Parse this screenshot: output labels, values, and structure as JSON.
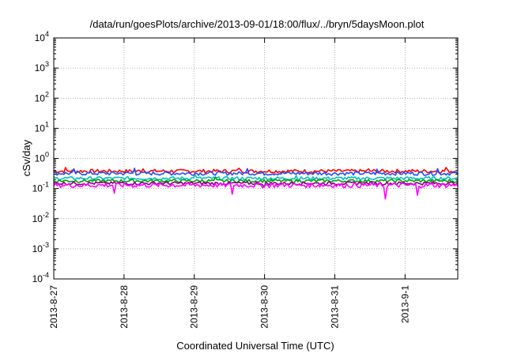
{
  "chart_data": {
    "type": "line",
    "title": "/data/run/goesPlots/archive/2013-09-01/18:00/flux/../bryn/5daysMoon.plot",
    "xlabel": "Coordinated Universal Time (UTC)",
    "ylabel": "cSv/day",
    "yscale": "log",
    "ylim": [
      0.0001,
      10000
    ],
    "y_ticks": [
      {
        "base": "10",
        "exp": "-4",
        "value": 0.0001
      },
      {
        "base": "10",
        "exp": "-3",
        "value": 0.001
      },
      {
        "base": "10",
        "exp": "-2",
        "value": 0.01
      },
      {
        "base": "10",
        "exp": "-1",
        "value": 0.1
      },
      {
        "base": "10",
        "exp": "0",
        "value": 1
      },
      {
        "base": "10",
        "exp": "1",
        "value": 10
      },
      {
        "base": "10",
        "exp": "2",
        "value": 100
      },
      {
        "base": "10",
        "exp": "3",
        "value": 1000
      },
      {
        "base": "10",
        "exp": "4",
        "value": 10000
      }
    ],
    "xlim": [
      "2013-08-27",
      "2013-09-01T18:00"
    ],
    "x_ticks": [
      "2013-8-27",
      "2013-8-28",
      "2013-8-29",
      "2013-8-30",
      "2013-8-31",
      "2013-9-1"
    ],
    "grid": true,
    "series": [
      {
        "color": "#ff0000",
        "base": 0.38,
        "spread": 0.14,
        "spikes": [
          [
            0.03,
            0.5
          ],
          [
            0.22,
            0.45
          ],
          [
            0.46,
            0.47
          ],
          [
            0.78,
            0.45
          ],
          [
            0.97,
            0.5
          ]
        ]
      },
      {
        "color": "#1f4fff",
        "base": 0.32,
        "spread": 0.14,
        "spikes": [
          [
            0.05,
            0.45
          ],
          [
            0.2,
            0.47
          ],
          [
            0.48,
            0.46
          ],
          [
            0.8,
            0.44
          ],
          [
            0.95,
            0.46
          ]
        ]
      },
      {
        "color": "#00c0c0",
        "base": 0.22,
        "spread": 0.12,
        "spikes": [
          [
            0.35,
            0.28
          ],
          [
            0.6,
            0.27
          ]
        ]
      },
      {
        "color": "#00a000",
        "base": 0.18,
        "spread": 0.12,
        "spikes": [
          [
            0.4,
            0.24
          ]
        ]
      },
      {
        "color": "#800080",
        "base": 0.15,
        "spread": 0.12,
        "spikes": [
          [
            0.52,
            0.11
          ]
        ]
      },
      {
        "color": "#ff00ff",
        "base": 0.13,
        "spread": 0.18,
        "spikes": [
          [
            0.15,
            0.07
          ],
          [
            0.44,
            0.065
          ],
          [
            0.82,
            0.045
          ],
          [
            0.9,
            0.06
          ]
        ]
      }
    ]
  }
}
